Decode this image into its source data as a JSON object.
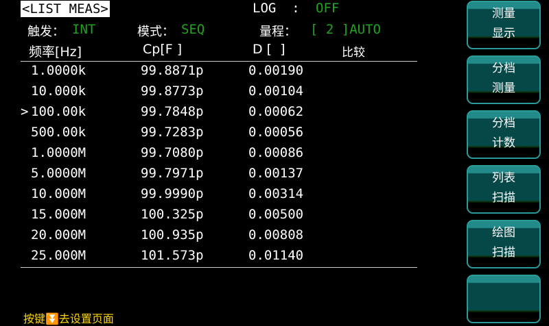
{
  "header": {
    "title": "<LIST MEAS>",
    "log_label": "LOG  :",
    "log_value": "OFF",
    "trigger_label": "触发：",
    "trigger_value": "INT",
    "mode_label": "模式：",
    "mode_value": "SEQ",
    "range_label": "量程：",
    "range_value": "[ 2 ]AUTO"
  },
  "table": {
    "columns": [
      "频率[Hz]",
      "Cp[F ]",
      "D [  ]",
      "比较"
    ],
    "cursor": ">",
    "cursor_row": 2,
    "rows": [
      [
        "1.0000k",
        "99.8871p",
        "0.00190"
      ],
      [
        "10.000k",
        "99.8773p",
        "0.00104"
      ],
      [
        "100.00k",
        "99.7848p",
        "0.00062"
      ],
      [
        "500.00k",
        "99.7283p",
        "0.00056"
      ],
      [
        "1.0000M",
        "99.7080p",
        "0.00086"
      ],
      [
        "5.0000M",
        "99.7971p",
        "0.00137"
      ],
      [
        "10.000M",
        "99.9990p",
        "0.00314"
      ],
      [
        "15.000M",
        "100.325p",
        "0.00500"
      ],
      [
        "20.000M",
        "100.935p",
        "0.00808"
      ],
      [
        "25.000M",
        "101.573p",
        "0.01140"
      ]
    ]
  },
  "softkeys": [
    [
      "测量",
      "显示"
    ],
    [
      "分档",
      "测量"
    ],
    [
      "分档",
      "计数"
    ],
    [
      "列表",
      "扫描"
    ],
    [
      "绘图",
      "扫描"
    ],
    [
      "",
      ""
    ]
  ],
  "hint": "按键⏬去设置页面",
  "colors": {
    "value_green": "#1fa41f",
    "hint_yellow": "#ffd700",
    "button_teal": "#064848"
  }
}
